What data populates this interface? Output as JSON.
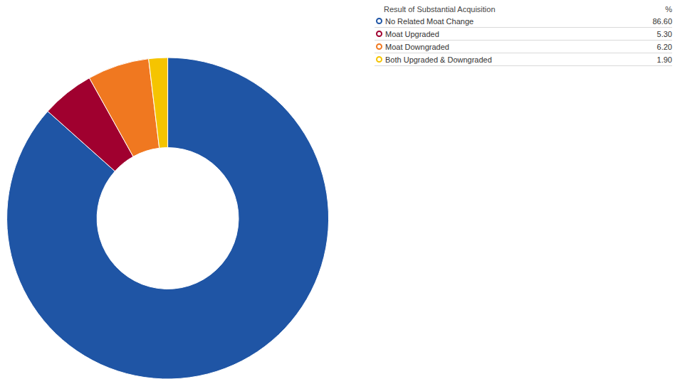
{
  "chart_data": {
    "type": "pie",
    "legend": "top right",
    "legend_title": "Result of Substantial Acquisition",
    "value_unit": "%",
    "categories": [
      "No Related Moat Change",
      "Moat Upgraded",
      "Moat Downgraded",
      "Both Upgraded & Downgraded"
    ],
    "values": [
      86.6,
      5.3,
      6.2,
      1.9
    ],
    "value_labels": [
      "86.60",
      "5.30",
      "6.20",
      "1.90"
    ],
    "colors": [
      "#1f55a5",
      "#a0002f",
      "#f07820",
      "#f5c400"
    ],
    "data_labels": false
  }
}
